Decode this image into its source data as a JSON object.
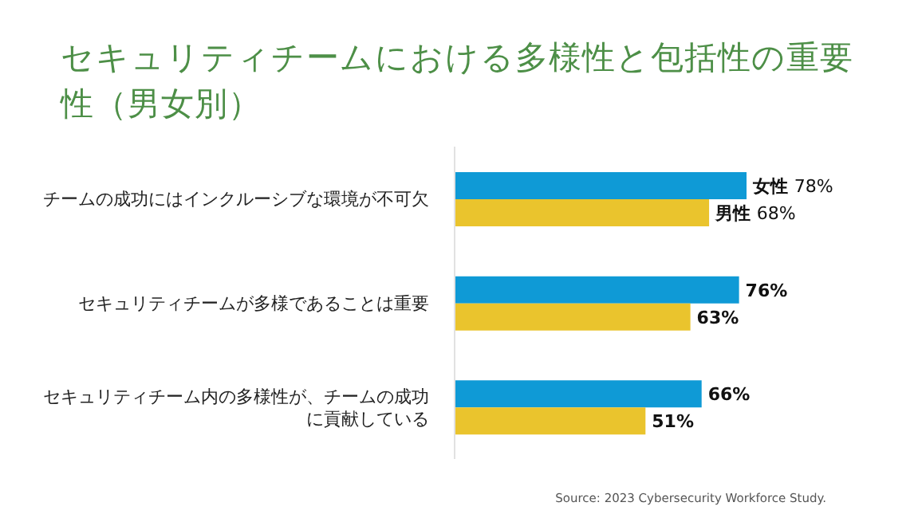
{
  "chart_data": {
    "type": "bar",
    "orientation": "horizontal",
    "title": "セキュリティチームにおける多様性と包括性の重要性（男女別）",
    "categories": [
      "チームの成功にはインクルーシブな環境が不可欠",
      "セキュリティチームが多様であることは重要",
      "セキュリティチーム内の多様性が、チームの成功に貢献している"
    ],
    "series": [
      {
        "name": "女性",
        "color": "#0f9ad6",
        "values": [
          78,
          76,
          66
        ],
        "value_labels": [
          "78%",
          "76%",
          "66%"
        ]
      },
      {
        "name": "男性",
        "color": "#eac42d",
        "values": [
          68,
          63,
          51
        ],
        "value_labels": [
          "68%",
          "63%",
          "51%"
        ]
      }
    ],
    "annotations": [
      "Source: 2023 Cybersecurity Workforce Study."
    ]
  }
}
